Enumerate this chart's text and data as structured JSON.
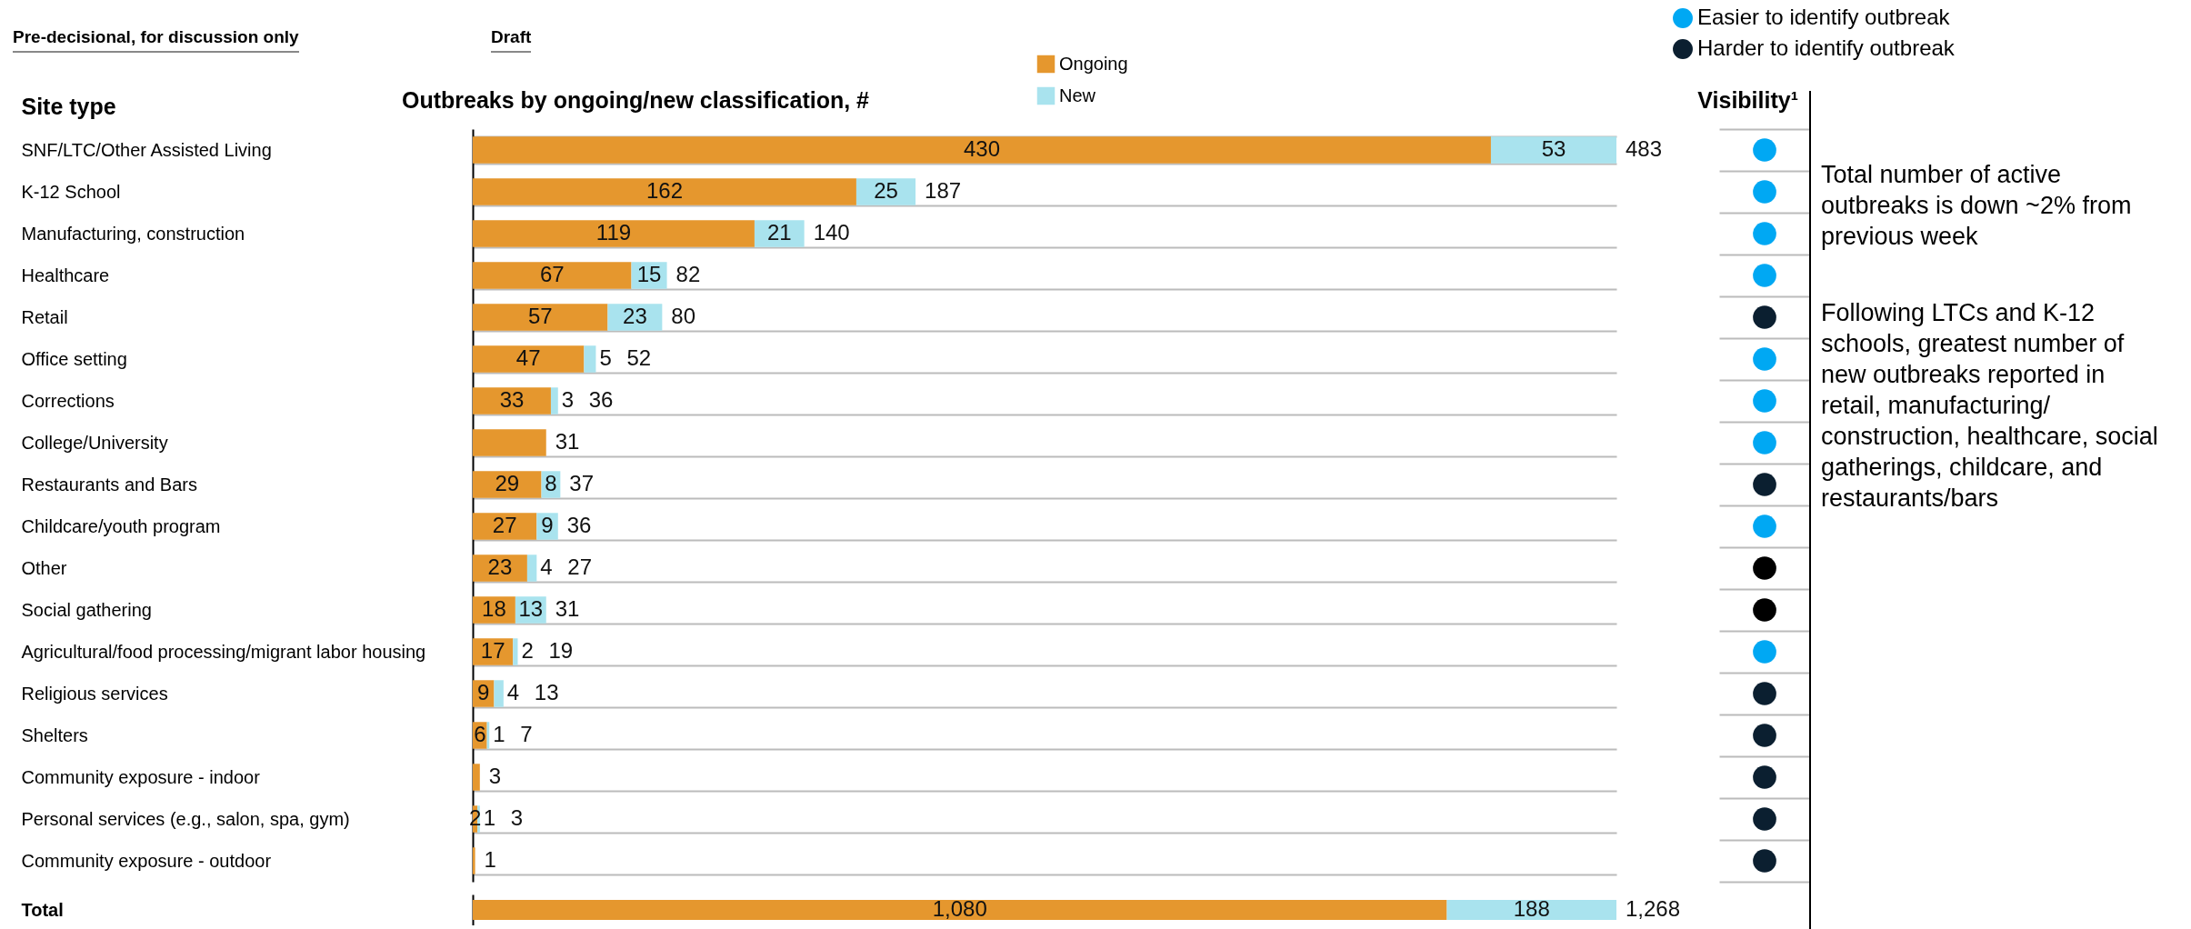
{
  "chart_data": [
    {
      "type": "bar",
      "orientation": "horizontal",
      "stacked": true,
      "title": "Outbreaks by ongoing/new classification, #",
      "ylabel": "Site type",
      "categories": [
        "SNF/LTC/Other Assisted Living",
        "K-12 School",
        "Manufacturing, construction",
        "Healthcare",
        "Retail",
        "Office setting",
        "Corrections",
        "College/University",
        "Restaurants and Bars",
        "Childcare/youth program",
        "Other",
        "Social gathering",
        "Agricultural/food processing/migrant labor housing",
        "Religious services",
        "Shelters",
        "Community exposure - indoor",
        "Personal services (e.g., salon, spa, gym)",
        "Community exposure - outdoor"
      ],
      "series": [
        {
          "name": "Ongoing",
          "color": "#e5972e",
          "values": [
            430,
            162,
            119,
            67,
            57,
            47,
            33,
            31,
            29,
            27,
            23,
            18,
            17,
            9,
            6,
            3,
            2,
            1
          ],
          "value_labels": [
            "430",
            "162",
            "119",
            "67",
            "57",
            "47",
            "33",
            null,
            "29",
            "27",
            "23",
            "18",
            "17",
            "9",
            "6",
            null,
            "2",
            null
          ]
        },
        {
          "name": "New",
          "color": "#a9e3ee",
          "values": [
            53,
            25,
            21,
            15,
            23,
            5,
            3,
            null,
            8,
            9,
            4,
            13,
            2,
            4,
            1,
            null,
            1,
            null
          ],
          "value_labels": [
            "53",
            "25",
            "21",
            "15",
            "23",
            "5",
            "3",
            null,
            "8",
            "9",
            "4",
            "13",
            "2",
            "4",
            "1",
            null,
            "1",
            null
          ]
        }
      ],
      "totals": [
        "483",
        "187",
        "140",
        "82",
        "80",
        "52",
        "36",
        "31",
        "37",
        "36",
        "27",
        "31",
        "19",
        "13",
        "7",
        "3",
        "3",
        "1"
      ],
      "legend": "top",
      "grid": "y",
      "tick_labels": "y",
      "annotations": [
        "Pre-decisional, for discussion only",
        "Draft",
        "Total number of active outbreaks is down ~2% from previous week",
        "Following LTCs and K-12 schools, greatest number of new outbreaks reported in retail, manufacturing/ construction, healthcare, social gatherings, childcare, and restaurants/bars"
      ]
    },
    {
      "type": "other",
      "title": "Visibility¹",
      "categories": [
        null,
        null,
        null,
        null,
        null,
        null,
        null,
        null,
        null,
        null,
        null,
        null,
        null,
        null,
        null,
        null,
        null,
        null
      ],
      "colors": [
        "#00a8f3",
        "#00a8f3",
        "#00a8f3",
        "#00a8f3",
        "#0b1f30",
        "#00a8f3",
        "#00a8f3",
        "#00a8f3",
        "#0b1f30",
        "#00a8f3",
        "#000000",
        "#000000",
        "#00a8f3",
        "#0b1f30",
        "#0b1f30",
        "#0b1f30",
        "#0b1f30",
        "#0b1f30"
      ],
      "annotations": [
        "Easier to identify outbreak",
        "Harder to identify outbreak"
      ]
    },
    {
      "type": "bar",
      "orientation": "horizontal",
      "stacked": true,
      "categories": [
        "Total"
      ],
      "series": [
        {
          "color": "#e5972e",
          "values": [
            1080
          ],
          "value_labels": [
            "1,080"
          ]
        },
        {
          "color": "#a9e3ee",
          "values": [
            188
          ],
          "value_labels": [
            "188"
          ]
        }
      ],
      "totals": [
        "1,268"
      ],
      "tick_labels": "y"
    }
  ]
}
